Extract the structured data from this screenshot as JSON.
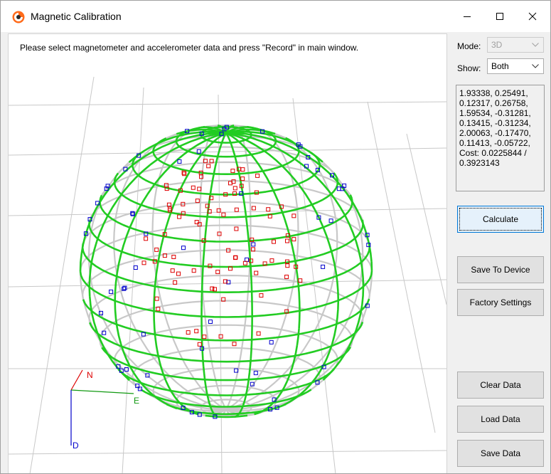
{
  "window": {
    "title": "Magnetic Calibration",
    "icon": "app-logo-icon",
    "controls": [
      "minimize-icon",
      "maximize-icon",
      "close-icon"
    ]
  },
  "viewport": {
    "instruction": "Please select magnetometer and accelerometer data and press \"Record\" in main window.",
    "axes": {
      "north": "N",
      "east": "E",
      "down": "D"
    },
    "colors": {
      "sphere_front": "#22cc22",
      "sphere_back": "#c8c8c8",
      "grid": "#c8c8c8",
      "magnetometer_points": "#0000cc",
      "accelerometer_points": "#dd0000",
      "axis_north": "#dd0000",
      "axis_east": "#119911",
      "axis_down": "#0000cc"
    }
  },
  "sidebar": {
    "mode": {
      "label": "Mode:",
      "value": "3D"
    },
    "show": {
      "label": "Show:",
      "value": "Both"
    },
    "params_text": "1.93338, 0.25491, 0.12317, 0.26758, 1.59534, -0.31281, 0.13415, -0.31234, 2.00063, -0.17470, 0.11413, -0.05722, Cost: 0.0225844 / 0.3923143",
    "buttons": {
      "calculate": "Calculate",
      "save_to_device": "Save To Device",
      "factory_settings": "Factory Settings",
      "clear_data": "Clear Data",
      "load_data": "Load Data",
      "save_data": "Save Data"
    }
  }
}
